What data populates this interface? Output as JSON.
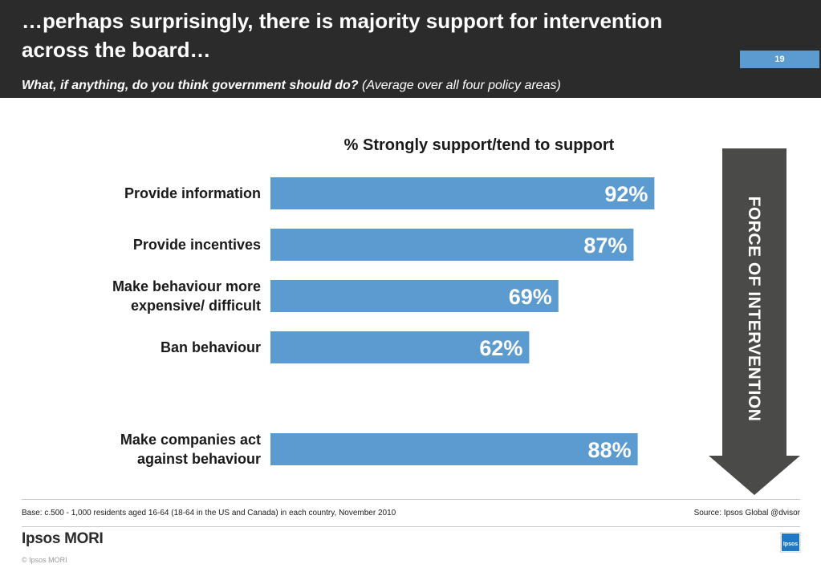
{
  "slide": {
    "title": "…perhaps surprisingly, there is majority support for intervention across the board…",
    "page_number": "19",
    "question": "What, if anything, do you think government should do?",
    "question_note": "(Average over all four policy areas)",
    "arrow_label": "FORCE OF INTERVENTION",
    "base_note": "Base: c.500 - 1,000 residents aged 16-64 (18-64 in the US and Canada) in each country, November 2010",
    "source_note": "Source: Ipsos Global @dvisor",
    "brand": "Ipsos MORI",
    "copyright": "© Ipsos MORI",
    "logo_text": "Ipsos"
  },
  "colors": {
    "bar": "#5b9bd0",
    "header": "#2b2b2b",
    "arrow": "#4a4a48",
    "accent": "#5b9bd0"
  },
  "chart_data": {
    "type": "bar",
    "orientation": "horizontal",
    "title": "% Strongly support/tend to support",
    "categories": [
      "Provide information",
      "Provide incentives",
      "Make behaviour more expensive/ difficult",
      "Ban behaviour",
      "Make companies act against behaviour"
    ],
    "category_lines": [
      [
        "Provide information"
      ],
      [
        "Provide incentives"
      ],
      [
        "Make behaviour more",
        "expensive/ difficult"
      ],
      [
        "Ban behaviour"
      ],
      [
        "Make companies act",
        "against behaviour"
      ]
    ],
    "values": [
      92,
      87,
      69,
      62,
      88
    ],
    "data_labels": [
      "92%",
      "87%",
      "69%",
      "62%",
      "88%"
    ],
    "unit": "%",
    "xlim": [
      0,
      100
    ],
    "grid": false,
    "legend": "none"
  }
}
